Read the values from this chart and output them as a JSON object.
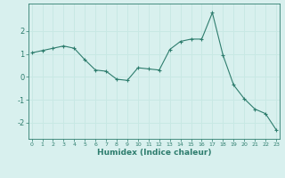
{
  "x": [
    0,
    1,
    2,
    3,
    4,
    5,
    6,
    7,
    8,
    9,
    10,
    11,
    12,
    13,
    14,
    15,
    16,
    17,
    18,
    19,
    20,
    21,
    22,
    23
  ],
  "y": [
    1.05,
    1.15,
    1.25,
    1.35,
    1.25,
    0.75,
    0.3,
    0.25,
    -0.1,
    -0.15,
    0.4,
    0.35,
    0.3,
    1.2,
    1.55,
    1.65,
    1.65,
    2.8,
    0.95,
    -0.35,
    -0.95,
    -1.4,
    -1.6,
    -2.3
  ],
  "line_color": "#2e7d6e",
  "marker": "+",
  "marker_color": "#2e7d6e",
  "bg_color": "#d8f0ee",
  "grid_color": "#c8e8e4",
  "axis_color": "#2e7d6e",
  "xlabel": "Humidex (Indice chaleur)",
  "ylim": [
    -2.7,
    3.2
  ],
  "yticks": [
    -2,
    -1,
    0,
    1,
    2
  ],
  "xticks": [
    0,
    1,
    2,
    3,
    4,
    5,
    6,
    7,
    8,
    9,
    10,
    11,
    12,
    13,
    14,
    15,
    16,
    17,
    18,
    19,
    20,
    21,
    22,
    23
  ],
  "xlim": [
    -0.3,
    23.3
  ]
}
